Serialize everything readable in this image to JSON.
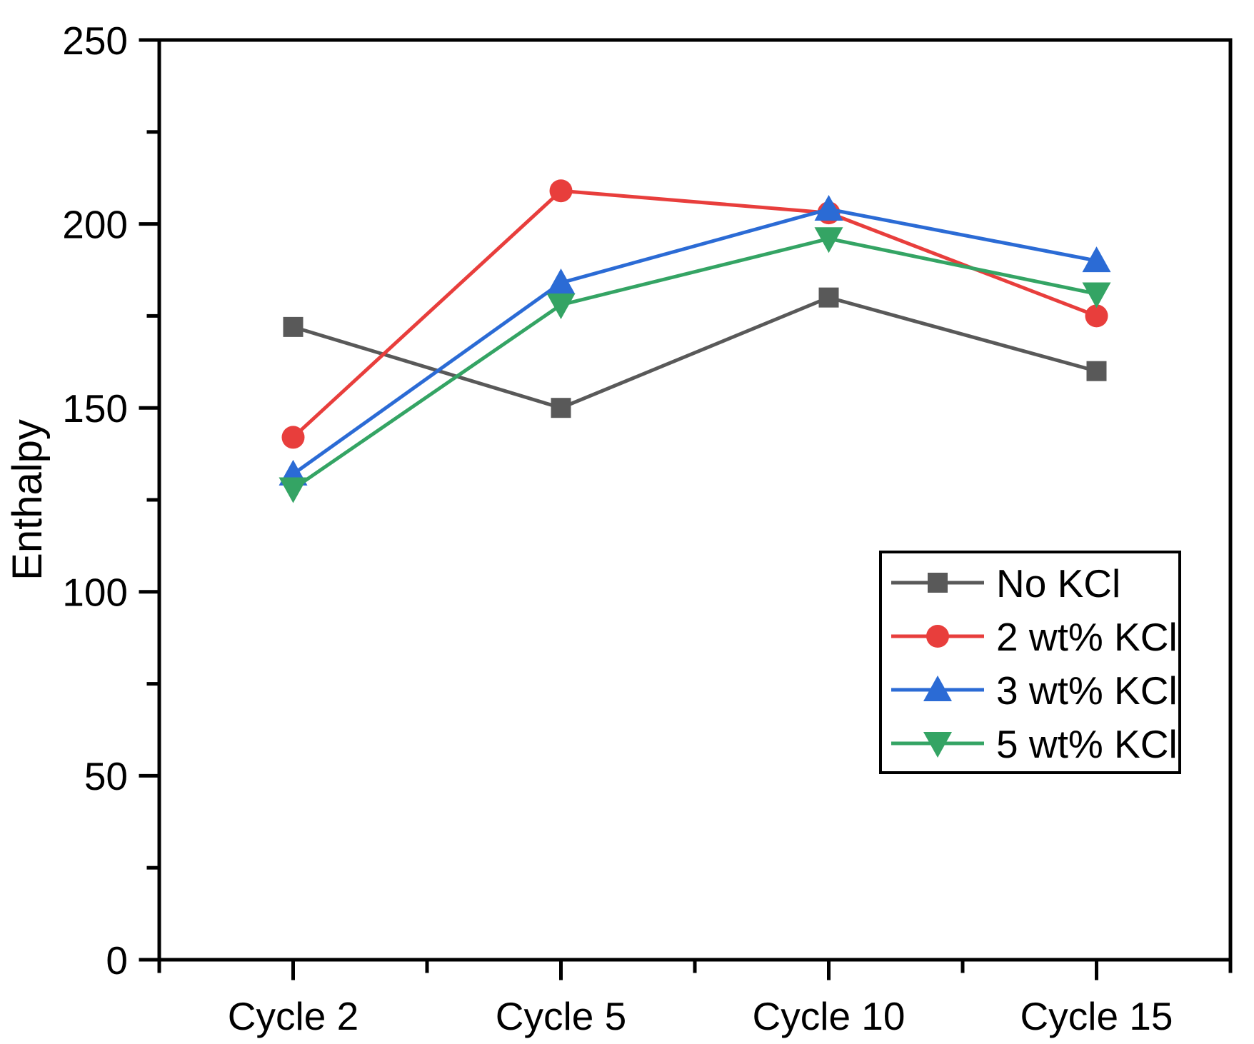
{
  "chart_data": {
    "type": "line",
    "title": "",
    "xlabel": "",
    "ylabel": "Enthalpy",
    "categories": [
      "Cycle 2",
      "Cycle 5",
      "Cycle 10",
      "Cycle 15"
    ],
    "series": [
      {
        "name": "No KCl",
        "marker": "square",
        "color": "#595959",
        "values": [
          172,
          150,
          180,
          160
        ]
      },
      {
        "name": "2 wt% KCl",
        "marker": "circle",
        "color": "#e83e3c",
        "values": [
          142,
          209,
          203,
          175
        ]
      },
      {
        "name": "3 wt% KCl",
        "marker": "triangle-up",
        "color": "#2b6bd5",
        "values": [
          132,
          184,
          204,
          190
        ]
      },
      {
        "name": "5 wt% KCl",
        "marker": "triangle-down",
        "color": "#34a464",
        "values": [
          128,
          178,
          196,
          181
        ]
      }
    ],
    "ylim": [
      0,
      250
    ],
    "y_major_step": 50,
    "y_minor_step": 25,
    "y_tick_labels": [
      "0",
      "50",
      "100",
      "150",
      "200",
      "250"
    ],
    "grid": false,
    "frame": true,
    "legend_position": "inside-lower-right",
    "axis_color": "#000000",
    "background_color": "#ffffff"
  }
}
